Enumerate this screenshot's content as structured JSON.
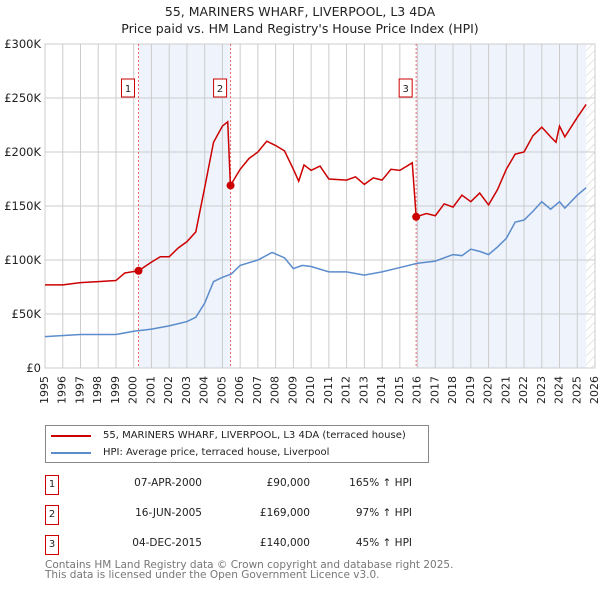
{
  "chart_data": {
    "type": "line",
    "title": "55, MARINERS WHARF, LIVERPOOL, L3 4DA",
    "subtitle": "Price paid vs. HM Land Registry's House Price Index (HPI)",
    "xlim": [
      1995,
      2026
    ],
    "ylim": [
      0,
      300000
    ],
    "yticks": [
      {
        "v": 0,
        "label": "£0"
      },
      {
        "v": 50000,
        "label": "£50K"
      },
      {
        "v": 100000,
        "label": "£100K"
      },
      {
        "v": 150000,
        "label": "£150K"
      },
      {
        "v": 200000,
        "label": "£200K"
      },
      {
        "v": 250000,
        "label": "£250K"
      },
      {
        "v": 300000,
        "label": "£300K"
      }
    ],
    "xticks": [
      "1995",
      "1996",
      "1997",
      "1998",
      "1999",
      "2000",
      "2001",
      "2002",
      "2003",
      "2004",
      "2005",
      "2006",
      "2007",
      "2008",
      "2009",
      "2010",
      "2011",
      "2012",
      "2013",
      "2014",
      "2015",
      "2016",
      "2017",
      "2018",
      "2019",
      "2020",
      "2021",
      "2022",
      "2023",
      "2024",
      "2025",
      "2026"
    ],
    "series": [
      {
        "name": "55, MARINERS WHARF, LIVERPOOL, L3 4DA (terraced house)",
        "color": "#cc0000",
        "x": [
          1995,
          1996,
          1997,
          1998,
          1999,
          1999.5,
          2000.27,
          2001,
          2001.5,
          2002,
          2002.5,
          2003,
          2003.5,
          2004,
          2004.5,
          2005,
          2005.3,
          2005.45,
          2006,
          2006.5,
          2007,
          2007.5,
          2008,
          2008.5,
          2009,
          2009.3,
          2009.6,
          2010,
          2010.5,
          2011,
          2012,
          2012.5,
          2013,
          2013.5,
          2014,
          2014.5,
          2015,
          2015.7,
          2015.92,
          2016.5,
          2017,
          2017.5,
          2018,
          2018.5,
          2019,
          2019.5,
          2020,
          2020.5,
          2021,
          2021.5,
          2022,
          2022.5,
          2023,
          2023.5,
          2023.8,
          2024,
          2024.3,
          2025,
          2025.5
        ],
        "y": [
          77000,
          77000,
          79000,
          80000,
          81000,
          88000,
          90000,
          98000,
          103000,
          103000,
          111000,
          117000,
          126000,
          167000,
          209000,
          224000,
          228000,
          169000,
          184000,
          194000,
          200000,
          210000,
          206000,
          201000,
          184000,
          173000,
          188000,
          183000,
          187000,
          175000,
          174000,
          177000,
          170000,
          176000,
          174000,
          184000,
          183000,
          190000,
          140000,
          143000,
          141000,
          152000,
          149000,
          160000,
          154000,
          162000,
          151000,
          165000,
          184000,
          198000,
          200000,
          215000,
          223000,
          214000,
          209000,
          224000,
          214000,
          232000,
          244000
        ]
      },
      {
        "name": "HPI: Average price, terraced house, Liverpool",
        "color": "#5b8ccc",
        "x": [
          1995,
          1997,
          1998,
          1999,
          2000,
          2001,
          2002,
          2003,
          2003.5,
          2004,
          2004.5,
          2005,
          2005.5,
          2006,
          2007,
          2007.8,
          2008.5,
          2009,
          2009.5,
          2010,
          2011,
          2012,
          2013,
          2014,
          2015,
          2016,
          2017,
          2018,
          2018.5,
          2019,
          2019.5,
          2020,
          2020.5,
          2021,
          2021.5,
          2022,
          2022.5,
          2023,
          2023.5,
          2024,
          2024.3,
          2025,
          2025.5
        ],
        "y": [
          29000,
          31000,
          31000,
          31000,
          34000,
          36000,
          39000,
          43000,
          47000,
          60000,
          80000,
          84000,
          87000,
          95000,
          100000,
          107000,
          102000,
          92000,
          95000,
          94000,
          89000,
          89000,
          86000,
          89000,
          93000,
          97000,
          99000,
          105000,
          104000,
          110000,
          108000,
          105000,
          112000,
          120000,
          135000,
          137000,
          145000,
          154000,
          147000,
          154000,
          148000,
          160000,
          167000
        ]
      }
    ],
    "sales": [
      {
        "n": "1",
        "x": 2000.27,
        "price": 90000,
        "date": "07-APR-2000",
        "price_label": "£90,000",
        "hpi": "165% ↑ HPI"
      },
      {
        "n": "2",
        "x": 2005.46,
        "price": 169000,
        "date": "16-JUN-2005",
        "price_label": "£169,000",
        "hpi": "97% ↑ HPI"
      },
      {
        "n": "3",
        "x": 2015.92,
        "price": 140000,
        "date": "04-DEC-2015",
        "price_label": "£140,000",
        "hpi": "45% ↑ HPI"
      }
    ],
    "shaded": [
      [
        2000.27,
        2005.46
      ],
      [
        2015.92,
        2025.5
      ]
    ],
    "forecast_from": 2025.5
  },
  "footer": {
    "line1": "Contains HM Land Registry data © Crown copyright and database right 2025.",
    "line2": "This data is licensed under the Open Government Licence v3.0."
  }
}
